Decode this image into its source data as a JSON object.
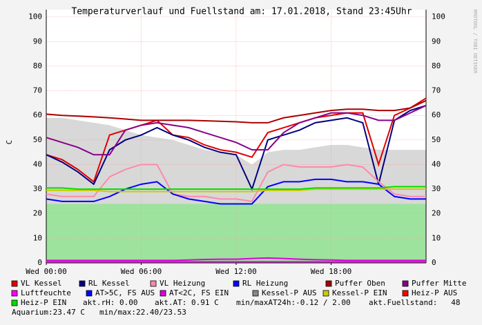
{
  "chart_data": {
    "type": "line",
    "title": "Temperaturverlauf und Fuellstand am: 17.01.2018, Stand 23:45Uhr",
    "y_label": "C",
    "side_label": "RRDTOOL / TOBI OETIKER",
    "x": [
      0,
      1,
      2,
      3,
      4,
      5,
      6,
      7,
      8,
      9,
      10,
      11,
      12,
      13,
      14,
      15,
      16,
      17,
      18,
      19,
      20,
      21,
      22,
      23,
      24
    ],
    "xlim": [
      0,
      24
    ],
    "xticks": [
      {
        "value": 0,
        "label": "Wed 00:00"
      },
      {
        "value": 6,
        "label": "Wed 06:00"
      },
      {
        "value": 12,
        "label": "Wed 12:00"
      },
      {
        "value": 18,
        "label": "Wed 18:00"
      }
    ],
    "ylim": [
      0,
      103
    ],
    "yticks": [
      0,
      10,
      20,
      30,
      40,
      50,
      60,
      70,
      80,
      90,
      100
    ],
    "grid": true,
    "background_areas": [
      {
        "color": "#d8d8d8",
        "values": [
          59,
          59,
          58,
          57,
          56,
          54,
          52,
          51,
          50,
          48,
          46,
          45,
          44,
          40,
          45,
          46,
          46,
          47,
          48,
          48,
          47,
          46,
          46,
          46,
          46
        ]
      },
      {
        "color": "#9de39d",
        "values": [
          24,
          24,
          24,
          24,
          24,
          24,
          24,
          24,
          24,
          24,
          24,
          24,
          24,
          24,
          24,
          24,
          24,
          24,
          24,
          24,
          24,
          24,
          24,
          24,
          24
        ]
      }
    ],
    "series": [
      {
        "name": "VL Kessel",
        "color": "#e00000",
        "values": [
          44,
          42,
          38,
          33,
          52,
          54,
          56,
          58,
          52,
          51,
          48,
          46,
          45,
          43,
          53,
          55,
          57,
          59,
          60,
          61,
          61,
          40,
          60,
          63,
          67
        ]
      },
      {
        "name": "RL Kessel",
        "color": "#000080",
        "values": [
          44,
          41,
          37,
          32,
          46,
          50,
          52,
          55,
          52,
          50,
          47,
          45,
          44,
          30,
          50,
          52,
          54,
          57,
          58,
          59,
          57,
          32,
          58,
          62,
          64
        ]
      },
      {
        "name": "VL Heizung",
        "color": "#ff88aa",
        "values": [
          28,
          27,
          27,
          27,
          35,
          38,
          40,
          40,
          28,
          27,
          27,
          26,
          26,
          25,
          37,
          40,
          39,
          39,
          39,
          40,
          39,
          33,
          28,
          27,
          27
        ]
      },
      {
        "name": "RL Heizung",
        "color": "#0000ff",
        "values": [
          26,
          25,
          25,
          25,
          27,
          30,
          32,
          33,
          28,
          26,
          25,
          24,
          24,
          24,
          31,
          33,
          33,
          34,
          34,
          33,
          33,
          32,
          27,
          26,
          26
        ]
      },
      {
        "name": "Puffer Oben",
        "color": "#aa0000",
        "values": [
          60.5,
          60,
          59.7,
          59.4,
          59,
          58.5,
          58,
          58,
          58,
          58,
          57.8,
          57.6,
          57.4,
          57,
          57,
          59,
          60,
          61,
          62,
          62.5,
          62.5,
          62,
          62,
          63,
          66
        ]
      },
      {
        "name": "Puffer Mitte",
        "color": "#880088",
        "values": [
          51,
          49,
          47,
          44,
          44,
          54,
          56,
          57,
          56,
          55,
          53,
          51,
          49,
          46,
          46,
          53,
          57,
          59,
          61,
          61,
          60,
          58,
          58,
          61,
          64
        ]
      },
      {
        "name": "Luftfeuchte",
        "color": "#ff00ff",
        "values": [
          0.5,
          0.5,
          0.5,
          0.5,
          0.5,
          0.5,
          0.5,
          0.5,
          0.5,
          0.5,
          0.5,
          0.5,
          0.5,
          0.5,
          0.5,
          0.5,
          0.5,
          0.5,
          0.5,
          0.5,
          0.5,
          0.5,
          0.5,
          0.5,
          0.5
        ]
      },
      {
        "name": "AT>5C, FS AUS",
        "color": "#0000ff"
      },
      {
        "name": "AT<2C, FS EIN",
        "color": "#dd00dd",
        "values": [
          1,
          1,
          1,
          1,
          1,
          1,
          1,
          1,
          1,
          1.2,
          1.4,
          1.5,
          1.5,
          1.8,
          2,
          1.8,
          1.5,
          1.3,
          1.2,
          1,
          1,
          1,
          1,
          1,
          1
        ]
      },
      {
        "name": "Kessel-P AUS",
        "color": "#888888"
      },
      {
        "name": "Kessel-P EIN",
        "color": "#cccc00",
        "values": [
          29.5,
          29.5,
          29.5,
          29.5,
          29,
          29,
          29,
          29,
          29,
          29,
          29,
          29,
          29,
          29,
          29.5,
          29.5,
          29.5,
          30,
          30,
          30,
          30,
          30,
          30,
          30,
          30
        ]
      },
      {
        "name": "Heiz-P AUS",
        "color": "#ff0000"
      },
      {
        "name": "Heiz-P EIN",
        "color": "#00dd00",
        "values": [
          30.5,
          30.5,
          30,
          30,
          30,
          30,
          30,
          30,
          30,
          30,
          30,
          30,
          30,
          30,
          30,
          30,
          30,
          30.5,
          30.5,
          30.5,
          30.5,
          30.5,
          31,
          31,
          31
        ]
      }
    ],
    "notes": [
      "akt.rH: 0.00",
      "akt.AT: 0.91 C",
      "min/maxAT24h:-0.12 / 2.00",
      "akt.Fuellstand:   48",
      "Aquarium:23.47 C",
      "min/max:22.40/23.53"
    ]
  }
}
